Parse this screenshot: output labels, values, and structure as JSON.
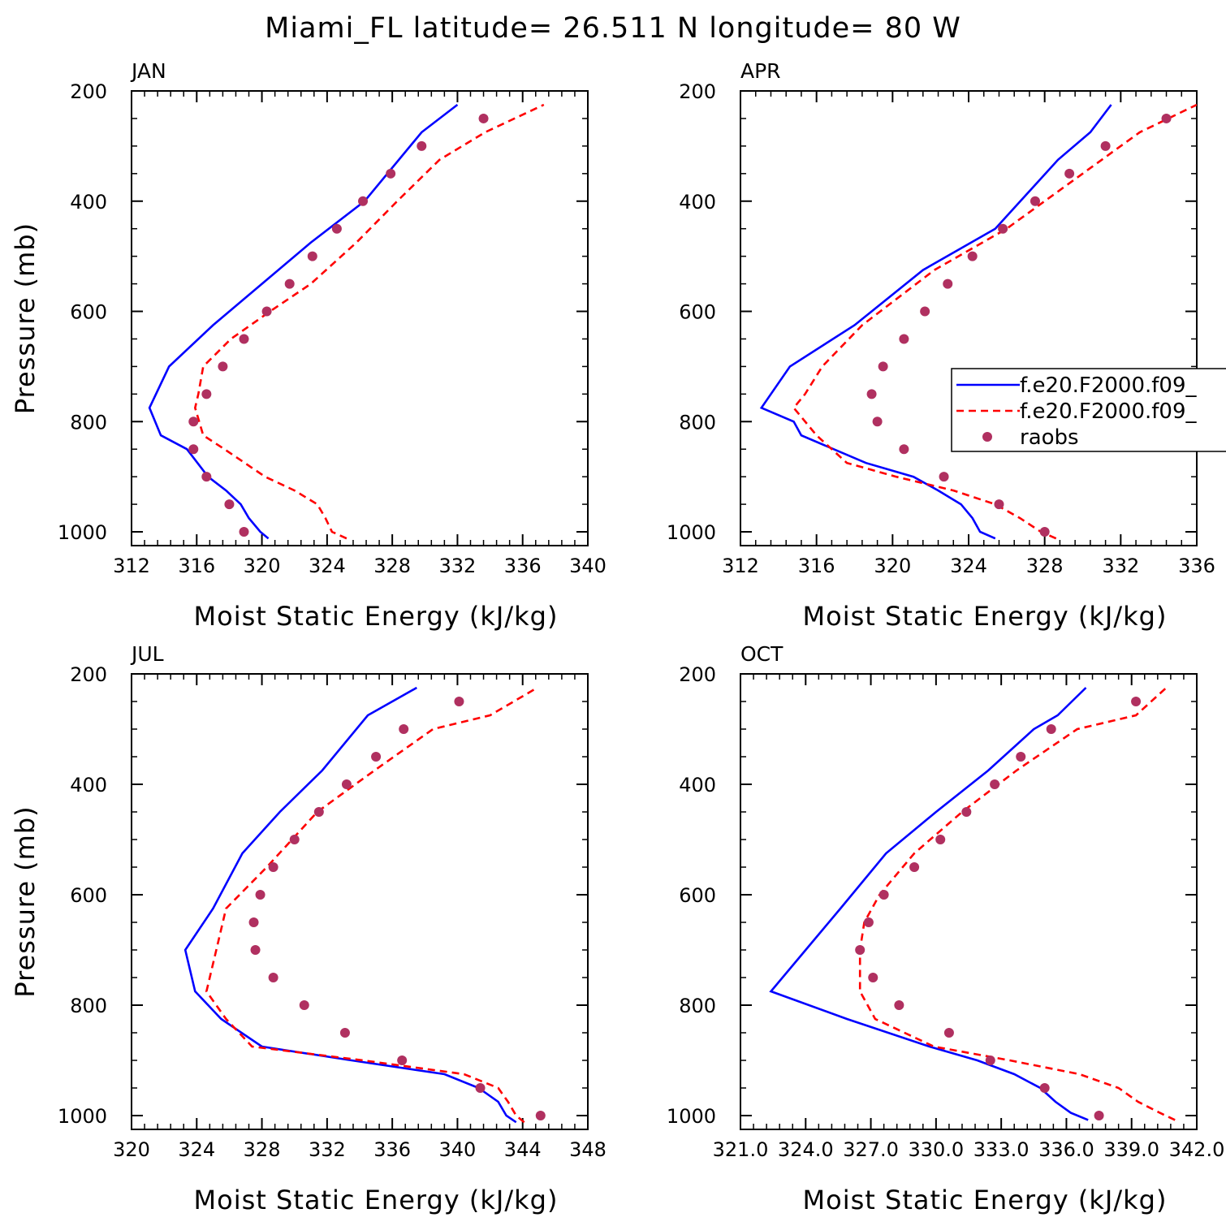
{
  "figure": {
    "title": "Miami_FL  latitude= 26.511 N longitude= 80 W"
  },
  "legend": {
    "entries": [
      {
        "label": "f.e20.F2000.f09_",
        "color": "#0000ff",
        "style": "solid"
      },
      {
        "label": "f.e20.F2000.f09_",
        "color": "#ff0000",
        "style": "dashed"
      },
      {
        "label": "raobs",
        "color": "#b03060",
        "style": "marker"
      }
    ]
  },
  "chart_data": [
    {
      "type": "line",
      "title": "JAN",
      "xlabel": "Moist Static Energy (kJ/kg)",
      "ylabel": "Pressure (mb)",
      "xlim": [
        312,
        340
      ],
      "ylim": [
        1025,
        200
      ],
      "x_ticks": [
        "312",
        "316",
        "320",
        "324",
        "328",
        "332",
        "336",
        "340"
      ],
      "y_ticks": [
        "200",
        "400",
        "600",
        "800",
        "1000"
      ],
      "series": [
        {
          "color": "#0000ff",
          "style": "solid",
          "x": [
            320.4,
            319.9,
            319.2,
            318.7,
            317.8,
            316.7,
            315.4,
            313.8,
            313.1,
            314.3,
            317.0,
            320.0,
            323.0,
            326.3,
            329.8,
            332.0
          ],
          "y": [
            1012,
            1000,
            975,
            950,
            925,
            900,
            850,
            825,
            775,
            700,
            625,
            550,
            475,
            400,
            275,
            225
          ]
        },
        {
          "color": "#ff0000",
          "style": "dashed",
          "x": [
            325.2,
            324.3,
            323.9,
            323.4,
            322.0,
            320.2,
            317.7,
            316.4,
            315.9,
            316.1,
            316.4,
            318.1,
            320.5,
            323.0,
            325.8,
            328.3,
            330.9,
            333.7,
            337.3
          ],
          "y": [
            1012,
            1000,
            975,
            950,
            925,
            900,
            850,
            825,
            775,
            750,
            700,
            650,
            600,
            550,
            475,
            400,
            325,
            275,
            225
          ]
        },
        {
          "color": "#b03060",
          "style": "marker",
          "x": [
            318.9,
            318.0,
            316.6,
            315.8,
            315.8,
            316.6,
            317.6,
            318.9,
            320.3,
            321.7,
            323.1,
            324.6,
            326.2,
            327.9,
            329.8,
            333.6
          ],
          "y": [
            1000,
            950,
            900,
            850,
            800,
            750,
            700,
            650,
            600,
            550,
            500,
            450,
            400,
            350,
            300,
            250
          ]
        }
      ]
    },
    {
      "type": "line",
      "title": "APR",
      "xlabel": "Moist Static Energy (kJ/kg)",
      "ylabel": "",
      "xlim": [
        312,
        336
      ],
      "ylim": [
        1025,
        200
      ],
      "x_ticks": [
        "312",
        "316",
        "320",
        "324",
        "328",
        "332",
        "336"
      ],
      "y_ticks": [
        "200",
        "400",
        "600",
        "800",
        "1000"
      ],
      "series": [
        {
          "color": "#0000ff",
          "style": "solid",
          "x": [
            325.4,
            324.6,
            324.2,
            323.6,
            322.4,
            321.1,
            318.6,
            315.2,
            314.8,
            313.1,
            314.6,
            318.0,
            321.6,
            325.4,
            328.7,
            330.4,
            331.5
          ],
          "y": [
            1012,
            1000,
            975,
            950,
            925,
            900,
            875,
            825,
            800,
            775,
            700,
            625,
            525,
            450,
            325,
            275,
            225
          ]
        },
        {
          "color": "#ff0000",
          "style": "dashed",
          "x": [
            328.6,
            327.8,
            326.7,
            325.4,
            323.2,
            320.2,
            317.6,
            316.0,
            314.8,
            315.4,
            316.3,
            318.4,
            322.2,
            326.0,
            330.0,
            333.0,
            336.0
          ],
          "y": [
            1012,
            1000,
            975,
            950,
            925,
            900,
            875,
            825,
            775,
            750,
            700,
            625,
            525,
            450,
            350,
            275,
            225
          ]
        },
        {
          "color": "#b03060",
          "style": "marker",
          "x": [
            328.0,
            325.6,
            322.7,
            320.6,
            319.2,
            318.9,
            319.5,
            320.6,
            321.7,
            322.9,
            324.2,
            325.8,
            327.5,
            329.3,
            331.2,
            334.4
          ],
          "y": [
            1000,
            950,
            900,
            850,
            800,
            750,
            700,
            650,
            600,
            550,
            500,
            450,
            400,
            350,
            300,
            250
          ]
        }
      ]
    },
    {
      "type": "line",
      "title": "JUL",
      "xlabel": "Moist Static Energy (kJ/kg)",
      "ylabel": "Pressure (mb)",
      "xlim": [
        320,
        348
      ],
      "ylim": [
        1025,
        200
      ],
      "x_ticks": [
        "320",
        "324",
        "328",
        "332",
        "336",
        "340",
        "344",
        "348"
      ],
      "y_ticks": [
        "200",
        "400",
        "600",
        "800",
        "1000"
      ],
      "series": [
        {
          "color": "#0000ff",
          "style": "solid",
          "x": [
            343.6,
            343.0,
            342.5,
            341.3,
            339.2,
            333.5,
            328.0,
            325.5,
            323.9,
            323.3,
            325.0,
            326.8,
            329.1,
            331.7,
            334.5,
            337.5
          ],
          "y": [
            1012,
            1000,
            975,
            950,
            925,
            900,
            875,
            825,
            775,
            700,
            625,
            525,
            450,
            375,
            275,
            225
          ]
        },
        {
          "color": "#ff0000",
          "style": "dashed",
          "x": [
            344.1,
            343.6,
            343.1,
            342.5,
            340.4,
            334.2,
            327.4,
            325.8,
            324.6,
            325.2,
            325.8,
            328.3,
            331.4,
            334.9,
            338.5,
            342.0,
            344.9
          ],
          "y": [
            1012,
            1000,
            975,
            950,
            925,
            900,
            875,
            825,
            775,
            700,
            625,
            550,
            450,
            375,
            300,
            275,
            225
          ]
        },
        {
          "color": "#b03060",
          "style": "marker",
          "x": [
            345.1,
            341.4,
            336.6,
            333.1,
            330.6,
            328.7,
            327.6,
            327.5,
            327.9,
            328.7,
            330.0,
            331.5,
            333.2,
            335.0,
            336.7,
            340.1
          ],
          "y": [
            1000,
            950,
            900,
            850,
            800,
            750,
            700,
            650,
            600,
            550,
            500,
            450,
            400,
            350,
            300,
            250
          ]
        }
      ]
    },
    {
      "type": "line",
      "title": "OCT",
      "xlabel": "Moist Static Energy (kJ/kg)",
      "ylabel": "",
      "xlim": [
        321.0,
        342.0
      ],
      "ylim": [
        1025,
        200
      ],
      "x_ticks": [
        "321.0",
        "324.0",
        "327.0",
        "330.0",
        "333.0",
        "336.0",
        "339.0",
        "342.0"
      ],
      "y_ticks": [
        "200",
        "400",
        "600",
        "800",
        "1000"
      ],
      "series": [
        {
          "color": "#0000ff",
          "style": "solid",
          "x": [
            337.0,
            336.2,
            335.5,
            334.8,
            333.6,
            331.9,
            329.7,
            325.9,
            322.4,
            324.0,
            325.6,
            327.7,
            330.0,
            332.4,
            334.5,
            335.6,
            336.9
          ],
          "y": [
            1008,
            995,
            975,
            950,
            925,
            900,
            875,
            825,
            775,
            700,
            625,
            525,
            450,
            375,
            300,
            275,
            225
          ]
        },
        {
          "color": "#ff0000",
          "style": "dashed",
          "x": [
            341.0,
            340.3,
            339.3,
            338.4,
            336.6,
            333.4,
            329.9,
            327.2,
            326.5,
            326.5,
            326.7,
            327.4,
            329.0,
            331.2,
            333.7,
            336.5,
            339.2,
            340.6
          ],
          "y": [
            1008,
            995,
            975,
            950,
            925,
            900,
            875,
            825,
            775,
            700,
            650,
            600,
            525,
            450,
            375,
            300,
            275,
            225
          ]
        },
        {
          "color": "#b03060",
          "style": "marker",
          "x": [
            337.5,
            335.0,
            332.5,
            330.6,
            328.3,
            327.1,
            326.5,
            326.9,
            327.6,
            329.0,
            330.2,
            331.4,
            332.7,
            333.9,
            335.3,
            339.2
          ],
          "y": [
            1000,
            950,
            900,
            850,
            800,
            750,
            700,
            650,
            600,
            550,
            500,
            450,
            400,
            350,
            300,
            250
          ]
        }
      ]
    }
  ]
}
